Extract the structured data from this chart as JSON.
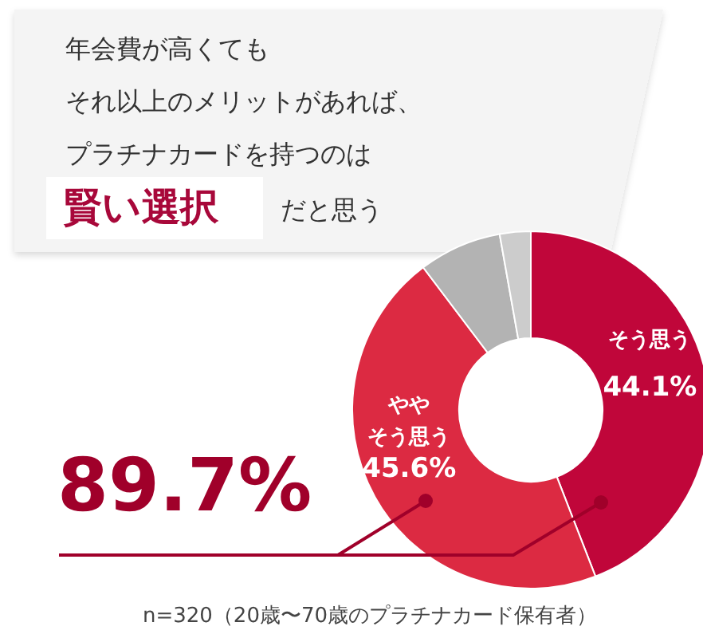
{
  "chart_data": {
    "type": "donut",
    "title": "年会費が高くても",
    "subtitle": "それ以上のメリットがあれば、プラチナカードを持つのは",
    "categories": [
      "そう思う",
      "ややそう思う",
      null,
      null
    ],
    "values": [
      44.1,
      45.6,
      7.5,
      2.8
    ],
    "colors": [
      "#c0063a",
      "#dc2a42",
      "#b3b3b3",
      "#cccccc"
    ],
    "value_labels": [
      "44.1%",
      "45.6%",
      null,
      null
    ],
    "annotations": [
      "賢い選択",
      "だと思う",
      "89.7%",
      "n=320（20歳〜70歳のプラチナカード保有者）"
    ]
  }
}
